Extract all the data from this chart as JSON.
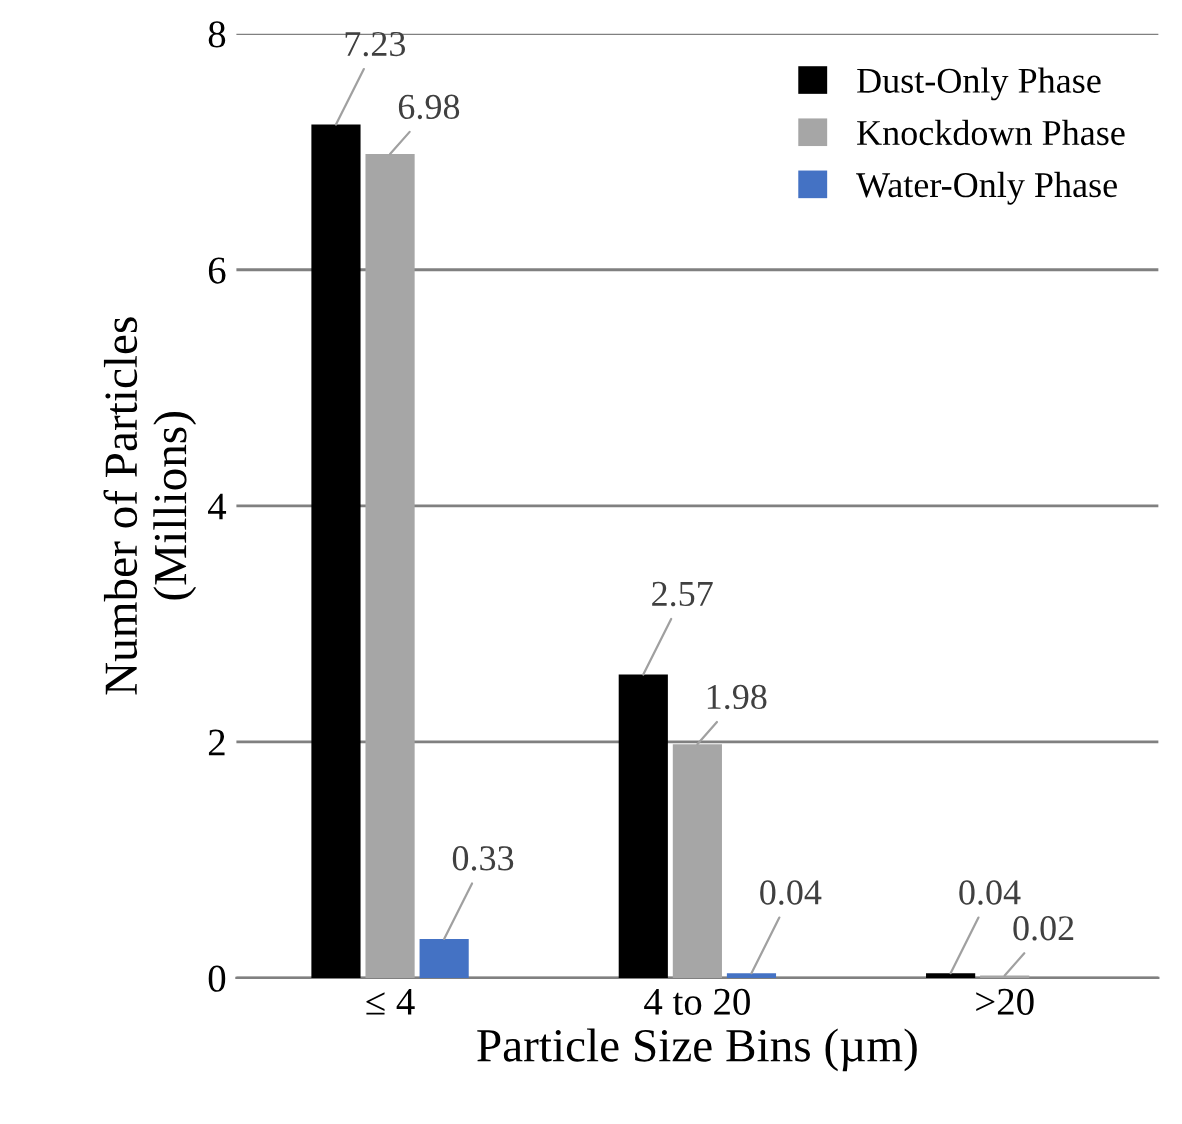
{
  "chart_data": {
    "type": "bar",
    "xlabel": "Particle Size Bins (µm)",
    "ylabel": "Number of Particles\n(Millions)",
    "categories": [
      "≤ 4",
      "4 to 20",
      ">20"
    ],
    "series": [
      {
        "name": "Dust-Only Phase",
        "color": "#000000",
        "values": [
          7.23,
          2.57,
          0.04
        ]
      },
      {
        "name": "Knockdown Phase",
        "color": "#a6a6a6",
        "values": [
          6.98,
          1.98,
          0.02
        ]
      },
      {
        "name": "Water-Only Phase",
        "color": "#4472c4",
        "values": [
          0.33,
          0.04,
          null
        ]
      }
    ],
    "ylim": [
      0,
      8
    ],
    "yticks": [
      0,
      2,
      4,
      6,
      8
    ],
    "grid": "y",
    "legend": "top right",
    "data_labels": true
  }
}
